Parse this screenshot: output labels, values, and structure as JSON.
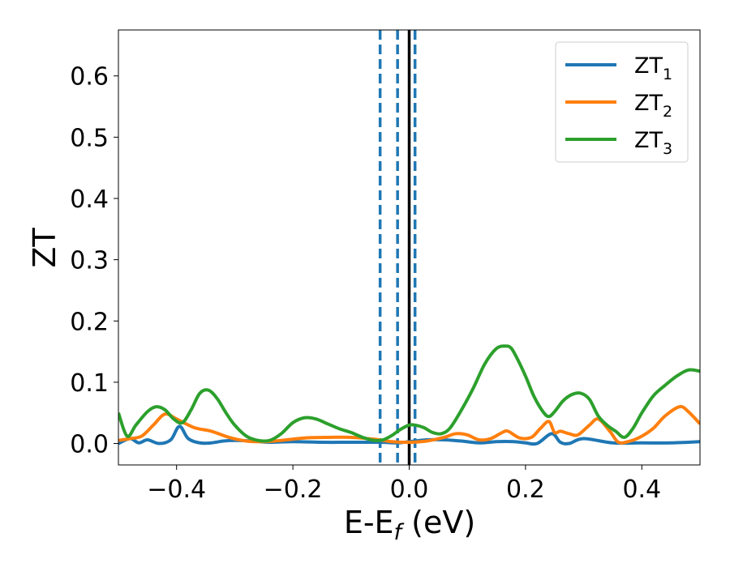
{
  "chart_data": {
    "type": "line",
    "xlabel": "E-E",
    "xlabel_sub": "f",
    "xlabel_suffix": " (eV)",
    "ylabel": "ZT",
    "xlim": [
      -0.5,
      0.5
    ],
    "ylim": [
      -0.035,
      0.675
    ],
    "xticks": [
      -0.4,
      -0.2,
      0.0,
      0.2,
      0.4
    ],
    "xtick_labels": [
      "−0.4",
      "−0.2",
      "0.0",
      "0.2",
      "0.4"
    ],
    "yticks": [
      0.0,
      0.1,
      0.2,
      0.3,
      0.4,
      0.5,
      0.6
    ],
    "ytick_labels": [
      "0.0",
      "0.1",
      "0.2",
      "0.3",
      "0.4",
      "0.5",
      "0.6"
    ],
    "grid": false,
    "legend_position": "top-right",
    "vertical_lines": [
      {
        "x": -0.05,
        "style": "dashed",
        "color": "#1f77b4"
      },
      {
        "x": -0.02,
        "style": "dashed",
        "color": "#1f77b4"
      },
      {
        "x": 0.01,
        "style": "dashed",
        "color": "#1f77b4"
      },
      {
        "x": 0.0,
        "style": "solid",
        "color": "#000000"
      }
    ],
    "series": [
      {
        "name": "ZT",
        "name_sub": "1",
        "color": "#1f77b4",
        "x": [
          -0.5,
          -0.48,
          -0.465,
          -0.45,
          -0.43,
          -0.41,
          -0.395,
          -0.38,
          -0.36,
          -0.34,
          -0.32,
          -0.3,
          -0.27,
          -0.24,
          -0.2,
          -0.15,
          -0.1,
          -0.05,
          -0.02,
          0.0,
          0.03,
          0.06,
          0.09,
          0.12,
          0.15,
          0.18,
          0.2,
          0.22,
          0.245,
          0.26,
          0.275,
          0.3,
          0.35,
          0.4,
          0.45,
          0.5
        ],
        "y": [
          0.0,
          0.008,
          0.001,
          0.006,
          0.0,
          0.006,
          0.028,
          0.008,
          0.001,
          0.001,
          0.004,
          0.005,
          0.004,
          0.002,
          0.003,
          0.002,
          0.002,
          0.002,
          0.001,
          0.003,
          0.006,
          0.006,
          0.004,
          0.001,
          0.003,
          0.003,
          0.001,
          0.0,
          0.016,
          0.002,
          0.0,
          0.008,
          0.001,
          0.001,
          0.001,
          0.003
        ]
      },
      {
        "name": "ZT",
        "name_sub": "2",
        "color": "#ff7f0e",
        "x": [
          -0.5,
          -0.48,
          -0.46,
          -0.44,
          -0.42,
          -0.4,
          -0.37,
          -0.34,
          -0.31,
          -0.28,
          -0.25,
          -0.22,
          -0.18,
          -0.14,
          -0.1,
          -0.06,
          -0.03,
          0.0,
          0.03,
          0.06,
          0.08,
          0.1,
          0.12,
          0.14,
          0.16,
          0.17,
          0.19,
          0.21,
          0.225,
          0.24,
          0.25,
          0.26,
          0.275,
          0.29,
          0.31,
          0.325,
          0.345,
          0.36,
          0.38,
          0.4,
          0.42,
          0.44,
          0.465,
          0.48,
          0.5
        ],
        "y": [
          0.005,
          0.008,
          0.012,
          0.03,
          0.048,
          0.04,
          0.026,
          0.02,
          0.01,
          0.004,
          0.003,
          0.005,
          0.009,
          0.01,
          0.01,
          0.007,
          0.003,
          0.002,
          0.004,
          0.01,
          0.016,
          0.014,
          0.006,
          0.008,
          0.018,
          0.02,
          0.009,
          0.01,
          0.024,
          0.036,
          0.018,
          0.02,
          0.016,
          0.014,
          0.03,
          0.04,
          0.02,
          0.002,
          0.004,
          0.012,
          0.025,
          0.045,
          0.06,
          0.052,
          0.032
        ]
      },
      {
        "name": "ZT",
        "name_sub": "3",
        "color": "#2ca02c",
        "x": [
          -0.5,
          -0.485,
          -0.47,
          -0.45,
          -0.435,
          -0.42,
          -0.405,
          -0.39,
          -0.375,
          -0.36,
          -0.345,
          -0.33,
          -0.315,
          -0.3,
          -0.28,
          -0.26,
          -0.24,
          -0.22,
          -0.2,
          -0.18,
          -0.16,
          -0.14,
          -0.12,
          -0.1,
          -0.08,
          -0.06,
          -0.045,
          -0.03,
          -0.015,
          0.0,
          0.01,
          0.025,
          0.04,
          0.055,
          0.07,
          0.09,
          0.11,
          0.13,
          0.15,
          0.165,
          0.175,
          0.185,
          0.2,
          0.215,
          0.23,
          0.24,
          0.25,
          0.265,
          0.28,
          0.295,
          0.31,
          0.325,
          0.34,
          0.355,
          0.37,
          0.385,
          0.4,
          0.42,
          0.44,
          0.46,
          0.48,
          0.5
        ],
        "y": [
          0.05,
          0.012,
          0.03,
          0.052,
          0.06,
          0.055,
          0.04,
          0.034,
          0.055,
          0.082,
          0.087,
          0.073,
          0.05,
          0.03,
          0.012,
          0.005,
          0.005,
          0.016,
          0.034,
          0.042,
          0.04,
          0.032,
          0.024,
          0.018,
          0.01,
          0.005,
          0.006,
          0.013,
          0.023,
          0.03,
          0.03,
          0.026,
          0.018,
          0.016,
          0.025,
          0.055,
          0.09,
          0.13,
          0.155,
          0.159,
          0.156,
          0.14,
          0.11,
          0.076,
          0.052,
          0.044,
          0.052,
          0.07,
          0.08,
          0.082,
          0.072,
          0.045,
          0.03,
          0.02,
          0.01,
          0.025,
          0.05,
          0.078,
          0.095,
          0.11,
          0.12,
          0.118
        ]
      }
    ]
  }
}
